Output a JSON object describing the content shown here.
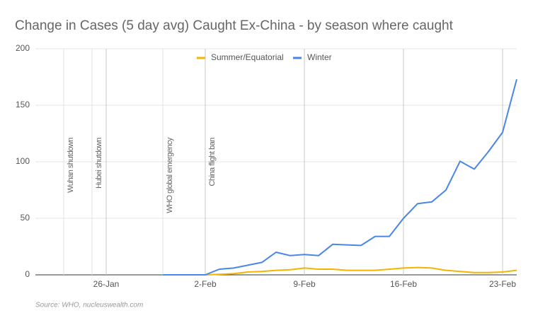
{
  "chart_data": {
    "type": "line",
    "title": "Change in Cases (5 day avg) Caught Ex-China - by season where caught",
    "source": "Source: WHO, nucleuswealth.com",
    "categories": [
      null,
      null,
      null,
      null,
      null,
      "26-Jan",
      null,
      null,
      null,
      null,
      null,
      null,
      "2-Feb",
      null,
      null,
      null,
      null,
      null,
      null,
      "9-Feb",
      null,
      null,
      null,
      null,
      null,
      null,
      "16-Feb",
      null,
      null,
      null,
      null,
      null,
      null,
      "23-Feb",
      null
    ],
    "series": [
      {
        "name": "Summer/Equatorial",
        "color": "#f4b400",
        "values": [
          null,
          null,
          null,
          null,
          null,
          null,
          null,
          null,
          null,
          null,
          null,
          null,
          0,
          0.5,
          1,
          2.5,
          3,
          4,
          4.5,
          6,
          5,
          5,
          4,
          4,
          4,
          5,
          6,
          6.5,
          6,
          4,
          3,
          2,
          2,
          2.5,
          4
        ]
      },
      {
        "name": "Winter",
        "color": "#4a86e8",
        "values": [
          null,
          null,
          null,
          null,
          null,
          null,
          null,
          null,
          null,
          0,
          0,
          0,
          0,
          5,
          6,
          8.5,
          11,
          20,
          17,
          18,
          17,
          27,
          26.5,
          26,
          34,
          34,
          50,
          63,
          64.5,
          75,
          100.5,
          93.5,
          109,
          126,
          173
        ]
      }
    ],
    "annotations": [
      "Wuhan shutdown",
      "Hubei shutdown",
      "WHO global emergency",
      "China flight ban"
    ],
    "ylim": [
      0,
      200
    ],
    "yticks": [
      0,
      50,
      100,
      150,
      200
    ],
    "grid": true,
    "legend": "top"
  }
}
